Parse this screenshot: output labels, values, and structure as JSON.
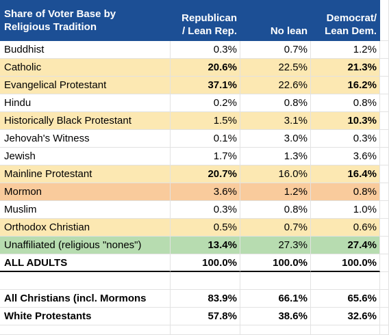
{
  "headers": {
    "tradition": [
      "Share of Voter Base by",
      "Religious Tradition"
    ],
    "republican": [
      "Republican",
      "/ Lean Rep."
    ],
    "nolean": [
      "No lean"
    ],
    "democrat": [
      "Democrat/",
      "Lean Dem."
    ]
  },
  "rows": [
    {
      "name": "Buddhist",
      "rep": "0.3%",
      "nolean": "0.7%",
      "dem": "1.2%",
      "fill": "none",
      "rep_bold": false,
      "dem_bold": false
    },
    {
      "name": "Catholic",
      "rep": "20.6%",
      "nolean": "22.5%",
      "dem": "21.3%",
      "fill": "yellow",
      "rep_bold": true,
      "dem_bold": true
    },
    {
      "name": "Evangelical Protestant",
      "rep": "37.1%",
      "nolean": "22.6%",
      "dem": "16.2%",
      "fill": "yellow",
      "rep_bold": true,
      "dem_bold": true
    },
    {
      "name": "Hindu",
      "rep": "0.2%",
      "nolean": "0.8%",
      "dem": "0.8%",
      "fill": "none",
      "rep_bold": false,
      "dem_bold": false
    },
    {
      "name": "Historically Black Protestant",
      "rep": "1.5%",
      "nolean": "3.1%",
      "dem": "10.3%",
      "fill": "yellow",
      "rep_bold": false,
      "dem_bold": true
    },
    {
      "name": "Jehovah's Witness",
      "rep": "0.1%",
      "nolean": "3.0%",
      "dem": "0.3%",
      "fill": "none",
      "rep_bold": false,
      "dem_bold": false
    },
    {
      "name": "Jewish",
      "rep": "1.7%",
      "nolean": "1.3%",
      "dem": "3.6%",
      "fill": "none",
      "rep_bold": false,
      "dem_bold": false
    },
    {
      "name": "Mainline Protestant",
      "rep": "20.7%",
      "nolean": "16.0%",
      "dem": "16.4%",
      "fill": "yellow",
      "rep_bold": true,
      "dem_bold": true
    },
    {
      "name": "Mormon",
      "rep": "3.6%",
      "nolean": "1.2%",
      "dem": "0.8%",
      "fill": "orange",
      "rep_bold": false,
      "dem_bold": false
    },
    {
      "name": "Muslim",
      "rep": "0.3%",
      "nolean": "0.8%",
      "dem": "1.0%",
      "fill": "none",
      "rep_bold": false,
      "dem_bold": false
    },
    {
      "name": "Orthodox Christian",
      "rep": "0.5%",
      "nolean": "0.7%",
      "dem": "0.6%",
      "fill": "yellow",
      "rep_bold": false,
      "dem_bold": false
    },
    {
      "name": "Unaffiliated (religious \"nones\")",
      "rep": "13.4%",
      "nolean": "27.3%",
      "dem": "27.4%",
      "fill": "green",
      "rep_bold": true,
      "dem_bold": true
    }
  ],
  "total": {
    "name": "ALL ADULTS",
    "rep": "100.0%",
    "nolean": "100.0%",
    "dem": "100.0%"
  },
  "summary": [
    {
      "name": "All Christians (incl. Mormons",
      "rep": "83.9%",
      "nolean": "66.1%",
      "dem": "65.6%"
    },
    {
      "name": "White Protestants",
      "rep": "57.8%",
      "nolean": "38.6%",
      "dem": "32.6%"
    }
  ]
}
